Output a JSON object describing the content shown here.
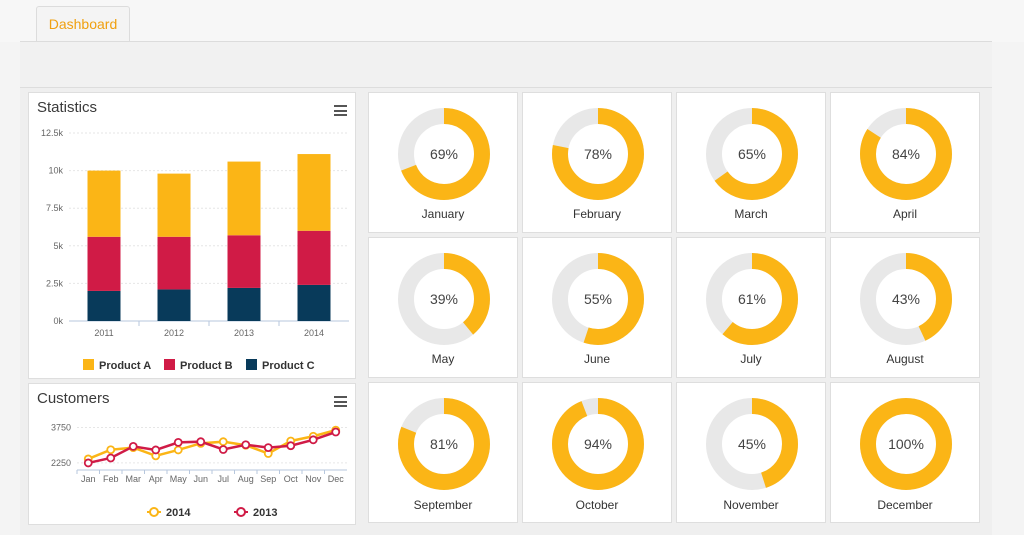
{
  "tabs": [
    {
      "label": "Dashboard"
    }
  ],
  "colors": {
    "product_a": "#fbb516",
    "product_b": "#d01b46",
    "product_c": "#083a5a",
    "donut_fill": "#fbb516",
    "donut_track": "#e8e8e8",
    "line_2014": "#fbb516",
    "line_2013": "#d01b46"
  },
  "statistics": {
    "title": "Statistics",
    "menu_icon": "hamburger-menu-icon",
    "chart_data": {
      "type": "bar",
      "stacked": true,
      "categories": [
        "2011",
        "2012",
        "2013",
        "2014"
      ],
      "series": [
        {
          "name": "Product C",
          "values": [
            2000,
            2100,
            2200,
            2400
          ]
        },
        {
          "name": "Product B",
          "values": [
            3600,
            3500,
            3500,
            3600
          ]
        },
        {
          "name": "Product A",
          "values": [
            4400,
            4200,
            4900,
            5100
          ]
        }
      ],
      "yticks": [
        "0k",
        "2.5k",
        "5k",
        "7.5k",
        "10k",
        "12.5k"
      ],
      "ylim": [
        0,
        12500
      ],
      "legend": [
        "Product A",
        "Product B",
        "Product C"
      ],
      "legend_position": "bottom"
    }
  },
  "customers": {
    "title": "Customers",
    "menu_icon": "hamburger-menu-icon",
    "chart_data": {
      "type": "line",
      "categories": [
        "Jan",
        "Feb",
        "Mar",
        "Apr",
        "May",
        "Jun",
        "Jul",
        "Aug",
        "Sep",
        "Oct",
        "Nov",
        "Dec"
      ],
      "series": [
        {
          "name": "2014",
          "values": [
            2420,
            2810,
            2900,
            2550,
            2800,
            3080,
            3150,
            3000,
            2650,
            3180,
            3380,
            3640
          ]
        },
        {
          "name": "2013",
          "values": [
            2250,
            2460,
            2950,
            2800,
            3120,
            3150,
            2820,
            3020,
            2900,
            2980,
            3230,
            3560
          ]
        }
      ],
      "yticks": [
        "2250",
        "3750"
      ],
      "ylim": [
        1950,
        3900
      ],
      "legend": [
        "2014",
        "2013"
      ],
      "legend_position": "bottom"
    }
  },
  "months": [
    {
      "name": "January",
      "percent": 69,
      "label": "69%"
    },
    {
      "name": "February",
      "percent": 78,
      "label": "78%"
    },
    {
      "name": "March",
      "percent": 65,
      "label": "65%"
    },
    {
      "name": "April",
      "percent": 84,
      "label": "84%"
    },
    {
      "name": "May",
      "percent": 39,
      "label": "39%"
    },
    {
      "name": "June",
      "percent": 55,
      "label": "55%"
    },
    {
      "name": "July",
      "percent": 61,
      "label": "61%"
    },
    {
      "name": "August",
      "percent": 43,
      "label": "43%"
    },
    {
      "name": "September",
      "percent": 81,
      "label": "81%"
    },
    {
      "name": "October",
      "percent": 94,
      "label": "94%"
    },
    {
      "name": "November",
      "percent": 45,
      "label": "45%"
    },
    {
      "name": "December",
      "percent": 100,
      "label": "100%"
    }
  ]
}
